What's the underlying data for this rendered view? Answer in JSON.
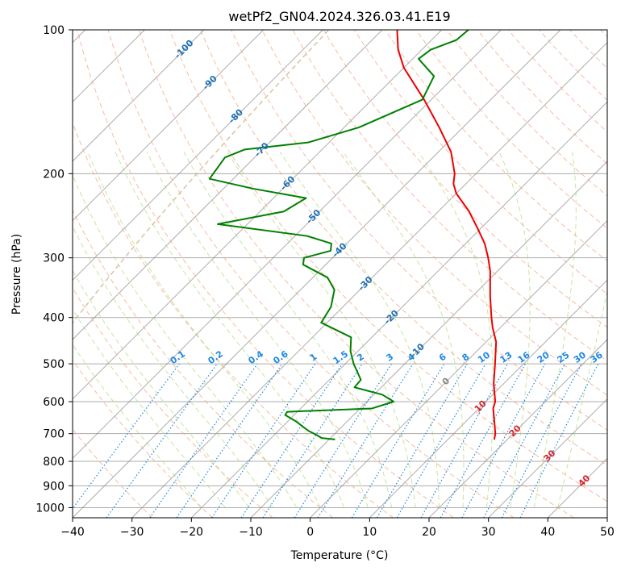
{
  "chart_data": {
    "type": "skew-t",
    "title": "wetPf2_GN04.2024.326.03.41.E19",
    "xlabel": "Temperature (°C)",
    "ylabel": "Pressure (hPa)",
    "xlim": [
      -40,
      50
    ],
    "ylim": [
      1050,
      100
    ],
    "x_ticks": [
      -40,
      -30,
      -20,
      -10,
      0,
      10,
      20,
      30,
      40,
      50
    ],
    "y_ticks": [
      100,
      200,
      300,
      400,
      500,
      600,
      700,
      800,
      900,
      1000
    ],
    "grid": true,
    "colors": {
      "temperature": "#ee0000",
      "dewpoint": "#008000",
      "isotherm": "#808080",
      "dry_adiabat": "#f4a582",
      "moist_adiabat": "#a6d96a",
      "mixing_ratio": "#1e88e5",
      "isotherm_label": "#1f6fb4",
      "positive_label": "#d62728",
      "zero_label": "#888888",
      "lcl_curve": "#d2b48c"
    },
    "isotherm_labels": [
      -100,
      -90,
      -80,
      -70,
      -60,
      -50,
      -40,
      -30,
      -20,
      -10,
      0,
      10,
      20,
      30,
      40
    ],
    "mixing_ratio_labels": [
      "0.1",
      "0.2",
      "0.4",
      "0.6",
      "1",
      "1.5",
      "2",
      "3",
      "4",
      "6",
      "8",
      "10",
      "13",
      "16",
      "20",
      "25",
      "30",
      "36"
    ],
    "series": [
      {
        "key": "temperature",
        "points": [
          [
            720,
            17.8
          ],
          [
            700,
            17.0
          ],
          [
            650,
            14.2
          ],
          [
            620,
            12.4
          ],
          [
            600,
            11.6
          ],
          [
            550,
            8.3
          ],
          [
            500,
            5.2
          ],
          [
            450,
            1.7
          ],
          [
            420,
            -1.3
          ],
          [
            400,
            -3.2
          ],
          [
            360,
            -7.1
          ],
          [
            320,
            -11.2
          ],
          [
            300,
            -13.8
          ],
          [
            280,
            -16.8
          ],
          [
            260,
            -20.6
          ],
          [
            240,
            -24.8
          ],
          [
            220,
            -30.0
          ],
          [
            210,
            -32.1
          ],
          [
            200,
            -33.6
          ],
          [
            180,
            -37.9
          ],
          [
            160,
            -44.0
          ],
          [
            140,
            -51.2
          ],
          [
            120,
            -60.0
          ],
          [
            110,
            -64.0
          ],
          [
            100,
            -67.5
          ]
        ]
      },
      {
        "key": "dewpoint",
        "points": [
          [
            720,
            -9.0
          ],
          [
            715,
            -11.5
          ],
          [
            705,
            -12.8
          ],
          [
            690,
            -15.0
          ],
          [
            660,
            -18.6
          ],
          [
            640,
            -21.5
          ],
          [
            630,
            -21.7
          ],
          [
            620,
            -8.0
          ],
          [
            600,
            -5.5
          ],
          [
            580,
            -8.6
          ],
          [
            560,
            -14.5
          ],
          [
            540,
            -14.7
          ],
          [
            500,
            -18.6
          ],
          [
            470,
            -21.3
          ],
          [
            440,
            -23.5
          ],
          [
            410,
            -31.0
          ],
          [
            380,
            -32.0
          ],
          [
            350,
            -34.3
          ],
          [
            330,
            -37.5
          ],
          [
            310,
            -43.8
          ],
          [
            300,
            -44.8
          ],
          [
            290,
            -41.5
          ],
          [
            280,
            -42.6
          ],
          [
            270,
            -48.0
          ],
          [
            255,
            -65.0
          ],
          [
            240,
            -56.0
          ],
          [
            225,
            -54.5
          ],
          [
            215,
            -65.0
          ],
          [
            205,
            -74.0
          ],
          [
            185,
            -75.0
          ],
          [
            178,
            -73.0
          ],
          [
            172,
            -63.5
          ],
          [
            160,
            -57.5
          ],
          [
            140,
            -51.5
          ],
          [
            125,
            -53.5
          ],
          [
            115,
            -59.0
          ],
          [
            110,
            -58.5
          ],
          [
            105,
            -55.8
          ],
          [
            100,
            -55.5
          ]
        ]
      }
    ]
  }
}
